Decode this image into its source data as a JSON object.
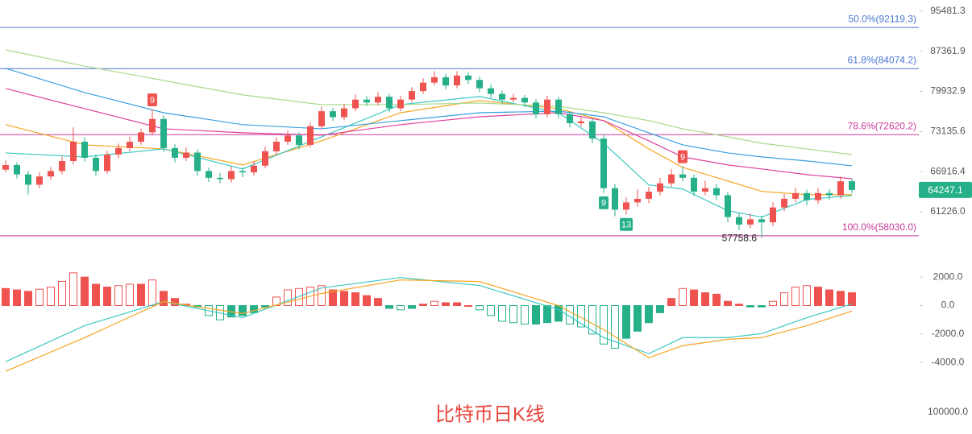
{
  "chart_data": [
    {
      "type": "candlestick",
      "title": "比特币日K线",
      "log_scale": true,
      "up_color": "#ef5350",
      "down_color": "#26b08a",
      "ylim": [
        57300,
        97900
      ],
      "yticks": [
        95481.3,
        87361.9,
        79932.9,
        73135.6,
        66916.4,
        {
          "value": 61226.0,
          "label": "61226.0"
        }
      ],
      "open": [
        67200,
        67900,
        66500,
        65000,
        66200,
        67000,
        68500,
        71500,
        69000,
        67000,
        69500,
        70500,
        71500,
        73000,
        75200,
        70500,
        69000,
        69800,
        67000,
        66000,
        65800,
        67000,
        66800,
        67800,
        70000,
        71500,
        72500,
        71000,
        74000,
        76500,
        75500,
        77000,
        78500,
        78000,
        79000,
        77000,
        78500,
        80000,
        81500,
        82500,
        81000,
        82800,
        82000,
        80500,
        79500,
        78500,
        78800,
        78000,
        76000,
        78500,
        76000,
        74500,
        74800,
        72000,
        64500,
        61500,
        62500,
        63000,
        64000,
        65200,
        66500,
        66000,
        64000,
        64500,
        63500,
        60500,
        59500,
        60200,
        59800,
        61800,
        63000,
        63800,
        62800,
        63800,
        63500,
        65500
      ],
      "high": [
        68600,
        68300,
        67000,
        66800,
        67600,
        69200,
        73800,
        72200,
        69500,
        70100,
        71200,
        72300,
        73600,
        76800,
        75800,
        71100,
        70600,
        70300,
        67500,
        66700,
        67700,
        67500,
        68400,
        70700,
        72200,
        73300,
        73000,
        74600,
        77300,
        77100,
        77800,
        79400,
        79100,
        79800,
        79500,
        79200,
        80700,
        82300,
        83600,
        83100,
        83600,
        83400,
        82600,
        81200,
        80100,
        79500,
        79300,
        78600,
        79200,
        79000,
        76500,
        75500,
        75300,
        72600,
        65100,
        63200,
        64400,
        64700,
        66000,
        67300,
        67700,
        66500,
        65600,
        65100,
        64000,
        61100,
        61000,
        60700,
        62500,
        63700,
        64600,
        64300,
        64500,
        64400,
        66200,
        65900
      ],
      "low": [
        66800,
        65900,
        63600,
        64500,
        65700,
        66500,
        68000,
        68400,
        66300,
        66600,
        68900,
        70000,
        71000,
        72500,
        69900,
        68300,
        68500,
        66300,
        65400,
        65200,
        65300,
        66100,
        66300,
        67400,
        69500,
        71000,
        70300,
        70600,
        73500,
        74900,
        75000,
        76500,
        77400,
        77500,
        76300,
        76500,
        78000,
        79500,
        81000,
        80300,
        80500,
        81300,
        79800,
        78800,
        77800,
        78000,
        77300,
        75300,
        75500,
        75300,
        73800,
        74000,
        71300,
        63800,
        60600,
        60800,
        61900,
        62400,
        63500,
        64700,
        65500,
        63400,
        63500,
        62800,
        59800,
        58800,
        59000,
        57758.6,
        59300,
        61300,
        62500,
        62100,
        62300,
        62800,
        63000,
        63800
      ],
      "close": [
        67900,
        66500,
        65000,
        66200,
        67000,
        68500,
        71500,
        69000,
        67000,
        69500,
        70500,
        71500,
        73000,
        75200,
        70500,
        69000,
        69800,
        67000,
        66000,
        65800,
        67000,
        66800,
        67800,
        70000,
        71500,
        72500,
        71000,
        74000,
        76500,
        75500,
        77000,
        78500,
        78000,
        79000,
        77000,
        78500,
        80000,
        81500,
        82500,
        81000,
        82800,
        82000,
        80500,
        79500,
        78500,
        78800,
        78000,
        76000,
        78500,
        76000,
        74500,
        74800,
        72000,
        64500,
        61500,
        62500,
        63000,
        64000,
        65200,
        66500,
        66000,
        64000,
        64500,
        63500,
        60500,
        59500,
        60200,
        59800,
        61800,
        63000,
        63800,
        62800,
        63800,
        63500,
        65500,
        64247.1
      ],
      "moving_averages": {
        "x": [
          0,
          7,
          14,
          21,
          28,
          35,
          42,
          49,
          53,
          57,
          60,
          64,
          67,
          71,
          75
        ],
        "series": [
          {
            "color": "#f5a623",
            "values": [
              74260,
              71000,
              70370,
              67910,
              71640,
              76250,
              78340,
              76940,
              74920,
              70370,
              67550,
              65540,
              64040,
              63580,
              63580
            ]
          },
          {
            "color": "#3cc8c0",
            "values": [
              69740,
              69130,
              70370,
              67310,
              72280,
              77630,
              79040,
              76250,
              71260,
              64960,
              64380,
              61360,
              60490,
              62900,
              63470
            ]
          },
          {
            "color": "#e0409c",
            "values": [
              80450,
              76940,
              73580,
              72930,
              72540,
              74260,
              75570,
              76250,
              74920,
              71640,
              69130,
              67910,
              67310,
              66470,
              65870
            ]
          },
          {
            "color": "#3a9fe0",
            "values": [
              84120,
              79740,
              76250,
              74260,
              73580,
              74920,
              76250,
              76520,
              75570,
              72930,
              71000,
              69740,
              69130,
              68520,
              67780
            ]
          },
          {
            "color": "#a8d88a",
            "values": [
              87640,
              84560,
              81900,
              79320,
              77630,
              77630,
              77910,
              77350,
              76250,
              74920,
              73580,
              72280,
              71260,
              70370,
              69490
            ]
          }
        ]
      },
      "fib_levels": [
        {
          "value": 92119.3,
          "label": "50.0%(92119.3)",
          "color": "#4a76d4"
        },
        {
          "value": 84074.2,
          "label": "61.8%(84074.2)",
          "color": "#4a76d4"
        },
        {
          "value": 72620.2,
          "label": "78.6%(72620.2)",
          "color": "#c8389a"
        },
        {
          "value": 58030.0,
          "label": "100.0%(58030.0)",
          "color": "#c8389a"
        }
      ],
      "td_markers": [
        {
          "x": 13,
          "label": "9",
          "color": "#ef5350"
        },
        {
          "x": 53,
          "label": "9",
          "color": "#26b08a"
        },
        {
          "x": 55,
          "label": "13",
          "color": "#26b08a"
        },
        {
          "x": 60,
          "label": "9",
          "color": "#ef5350"
        }
      ],
      "volume_ticks": [
        {
          "value": 100000,
          "label": "100000.0"
        }
      ]
    },
    {
      "type": "macd",
      "up_color": "#ef5350",
      "down_color": "#26b08a",
      "ylim": [
        -6250,
        2800
      ],
      "yticks": [
        {
          "value": 2000,
          "label": "2000.0"
        },
        {
          "value": 0,
          "label": "0.0"
        },
        {
          "value": -2000,
          "label": "-2000.0"
        },
        {
          "value": -4000,
          "label": "-4000.0"
        }
      ],
      "histogram": [
        1200,
        1100,
        1000,
        1150,
        1300,
        1700,
        2300,
        2000,
        1500,
        1300,
        1400,
        1500,
        1500,
        1800,
        1000,
        500,
        100,
        -100,
        -700,
        -1000,
        -800,
        -700,
        -500,
        -100,
        600,
        1100,
        1200,
        1300,
        1400,
        1100,
        1000,
        900,
        700,
        500,
        -200,
        -300,
        -200,
        100,
        300,
        200,
        200,
        0,
        -300,
        -700,
        -1100,
        -1200,
        -1300,
        -1300,
        -1200,
        -1100,
        -1300,
        -1500,
        -2000,
        -2700,
        -3000,
        -2300,
        -1800,
        -1200,
        -500,
        500,
        1200,
        1100,
        900,
        800,
        300,
        100,
        -100,
        -100,
        300,
        900,
        1300,
        1400,
        1300,
        1100,
        1000,
        900
      ],
      "x": [
        0,
        7,
        14,
        21,
        28,
        35,
        42,
        49,
        53,
        57,
        60,
        64,
        67,
        71,
        75
      ],
      "series": [
        {
          "color": "#3cc8c0",
          "values": [
            -3940,
            -1410,
            280,
            -850,
            1240,
            1970,
            1410,
            -280,
            -2250,
            -3380,
            -2250,
            -2250,
            -1970,
            -850,
            110
          ]
        },
        {
          "color": "#f5a623",
          "values": [
            -4620,
            -2250,
            280,
            -560,
            850,
            1800,
            1690,
            0,
            -1690,
            -3660,
            -2820,
            -2370,
            -2250,
            -1410,
            -390
          ]
        }
      ]
    }
  ]
}
